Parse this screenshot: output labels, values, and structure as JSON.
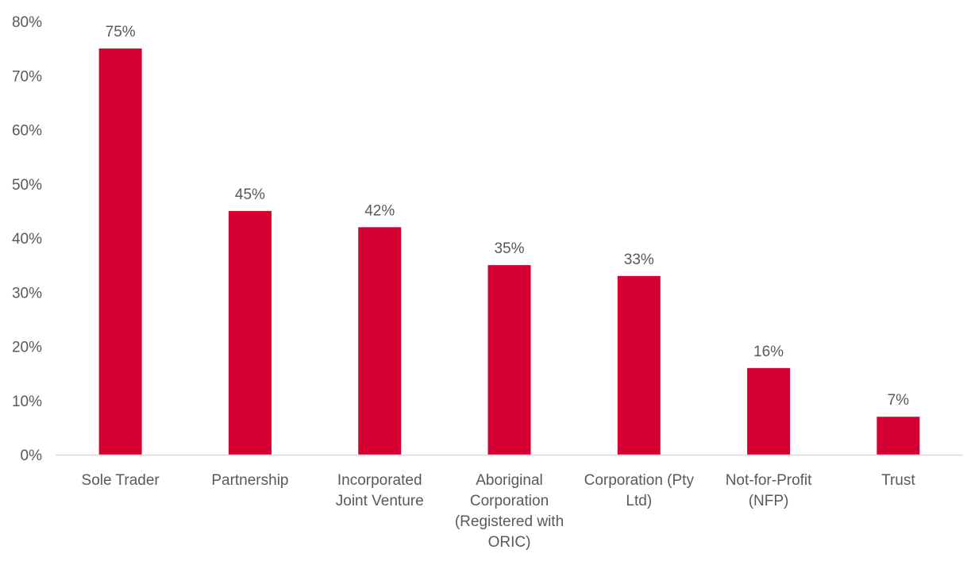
{
  "chart_data": {
    "type": "bar",
    "title": "",
    "xlabel": "",
    "ylabel": "",
    "categories": [
      "Sole Trader",
      "Partnership",
      "Incorporated Joint Venture",
      "Aboriginal Corporation (Registered with ORIC)",
      "Corporation (Pty Ltd)",
      "Not-for-Profit (NFP)",
      "Trust"
    ],
    "category_label_lines": [
      [
        "Sole Trader"
      ],
      [
        "Partnership"
      ],
      [
        "Incorporated",
        "Joint Venture"
      ],
      [
        "Aboriginal",
        "Corporation",
        "(Registered with",
        "ORIC)"
      ],
      [
        "Corporation (Pty",
        "Ltd)"
      ],
      [
        "Not-for-Profit",
        "(NFP)"
      ],
      [
        "Trust"
      ]
    ],
    "values": [
      75,
      45,
      42,
      35,
      33,
      16,
      7
    ],
    "data_labels": [
      "75%",
      "45%",
      "42%",
      "35%",
      "33%",
      "16%",
      "7%"
    ],
    "ylim": [
      0,
      80
    ],
    "y_ticks": [
      0,
      10,
      20,
      30,
      40,
      50,
      60,
      70,
      80
    ],
    "y_tick_labels": [
      "0%",
      "10%",
      "20%",
      "30%",
      "40%",
      "50%",
      "60%",
      "70%",
      "80%"
    ],
    "grid": false,
    "legend": "none",
    "colors": {
      "bar": "#D50032",
      "axis": "#D9D9D9",
      "text": "#595959"
    }
  }
}
